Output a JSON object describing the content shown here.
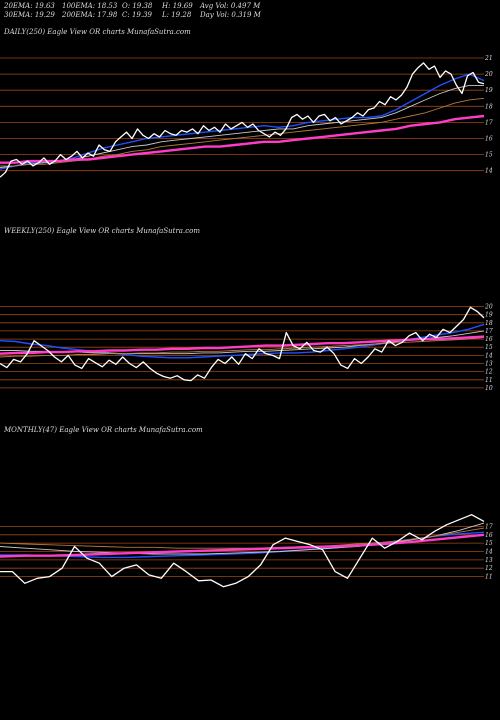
{
  "header": {
    "row1": [
      "20EMA: 19.63",
      "100EMA: 18.53",
      "O: 19.38",
      "H: 19.69",
      "Avg Vol: 0.497 M"
    ],
    "row2": [
      "30EMA: 19.29",
      "200EMA: 17.98",
      "C: 19.39",
      "L: 19.28",
      "Day Vol: 0.319 M"
    ]
  },
  "colors": {
    "background": "#000000",
    "price": "#ffffff",
    "ema_short": "#1e50ff",
    "ema_pink": "#ff3cc8",
    "ema_thin": "#c8c8c8",
    "ema_brown": "#b4783c",
    "level_line": "#a04614"
  },
  "chart_data": [
    {
      "type": "line",
      "title": "DAILY(250) Eagle  View  OR charts MunafaSutra.com",
      "yticks": [
        "21",
        "20",
        "19",
        "18",
        "17",
        "16",
        "15",
        "14"
      ],
      "levels": [
        21,
        20,
        19,
        18,
        17,
        16,
        15,
        14
      ],
      "ylim": [
        13.3,
        21.5
      ],
      "series": [
        {
          "role": "price",
          "color": "#ffffff",
          "values": [
            13.6,
            13.9,
            14.6,
            14.7,
            14.4,
            14.6,
            14.3,
            14.5,
            14.8,
            14.4,
            14.6,
            15.0,
            14.7,
            14.9,
            15.2,
            14.8,
            15.1,
            14.9,
            15.6,
            15.3,
            15.2,
            15.8,
            16.1,
            16.4,
            16.0,
            16.6,
            16.2,
            16.0,
            16.3,
            16.1,
            16.5,
            16.3,
            16.2,
            16.5,
            16.4,
            16.6,
            16.3,
            16.8,
            16.5,
            16.7,
            16.4,
            16.9,
            16.6,
            16.8,
            17.0,
            16.7,
            16.9,
            16.5,
            16.3,
            16.1,
            16.4,
            16.2,
            16.6,
            17.3,
            17.5,
            17.2,
            17.4,
            17.0,
            17.4,
            17.5,
            17.1,
            17.3,
            16.9,
            17.1,
            17.3,
            17.6,
            17.4,
            17.8,
            17.9,
            18.3,
            18.1,
            18.6,
            18.4,
            18.7,
            19.2,
            20.0,
            20.4,
            20.7,
            20.3,
            20.5,
            19.8,
            20.2,
            20.0,
            19.3,
            18.8,
            19.9,
            20.1,
            19.5,
            19.4
          ]
        },
        {
          "role": "ema_short",
          "color": "#1e50ff",
          "values": [
            14.1,
            14.3,
            14.5,
            14.5,
            14.6,
            14.8,
            15.1,
            15.4,
            15.6,
            15.8,
            16.0,
            16.1,
            16.2,
            16.3,
            16.4,
            16.5,
            16.6,
            16.7,
            16.8,
            16.7,
            16.8,
            17.0,
            17.1,
            17.2,
            17.3,
            17.3,
            17.4,
            17.8,
            18.3,
            18.8,
            19.3,
            19.7,
            20.0,
            19.6
          ]
        },
        {
          "role": "ema_mid",
          "color": "#c8c8c8",
          "values": [
            14.2,
            14.3,
            14.4,
            14.5,
            14.6,
            14.7,
            14.9,
            15.1,
            15.3,
            15.5,
            15.6,
            15.8,
            15.9,
            16.0,
            16.1,
            16.2,
            16.3,
            16.4,
            16.5,
            16.6,
            16.6,
            16.8,
            16.9,
            17.0,
            17.1,
            17.2,
            17.3,
            17.6,
            18.0,
            18.4,
            18.8,
            19.1,
            19.3,
            19.3
          ]
        },
        {
          "role": "ema_long",
          "color": "#b4783c",
          "values": [
            14.3,
            14.3,
            14.4,
            14.4,
            14.5,
            14.6,
            14.7,
            14.9,
            15.0,
            15.2,
            15.3,
            15.5,
            15.6,
            15.7,
            15.8,
            15.9,
            16.0,
            16.1,
            16.2,
            16.3,
            16.4,
            16.5,
            16.6,
            16.7,
            16.8,
            16.9,
            17.0,
            17.2,
            17.4,
            17.6,
            17.9,
            18.2,
            18.4,
            18.5
          ]
        },
        {
          "role": "ema_200",
          "color": "#ff3cc8",
          "values": [
            14.5,
            14.5,
            14.6,
            14.6,
            14.6,
            14.7,
            14.7,
            14.8,
            14.9,
            15.0,
            15.1,
            15.2,
            15.3,
            15.4,
            15.5,
            15.5,
            15.6,
            15.7,
            15.8,
            15.8,
            15.9,
            16.0,
            16.1,
            16.2,
            16.3,
            16.4,
            16.5,
            16.6,
            16.8,
            16.9,
            17.0,
            17.2,
            17.3,
            17.4
          ]
        }
      ]
    },
    {
      "type": "line",
      "title": "WEEKLY(250) Eagle  View  OR charts MunafaSutra.com",
      "yticks": [
        "20",
        "19",
        "18",
        "17",
        "16",
        "15",
        "14",
        "13",
        "12",
        "11",
        "10"
      ],
      "levels": [
        20,
        19,
        18,
        17,
        16,
        15,
        14,
        13,
        12,
        11,
        10
      ],
      "ylim": [
        9.5,
        20.8
      ],
      "series": [
        {
          "role": "price",
          "color": "#ffffff",
          "values": [
            13.0,
            12.5,
            13.5,
            13.2,
            14.2,
            15.8,
            15.2,
            14.6,
            13.8,
            13.2,
            14.0,
            12.8,
            12.4,
            13.6,
            13.1,
            12.6,
            13.4,
            12.9,
            13.8,
            13.0,
            12.5,
            13.2,
            12.4,
            11.8,
            11.4,
            11.2,
            11.5,
            11.0,
            10.9,
            11.6,
            11.2,
            12.5,
            13.5,
            13.0,
            13.8,
            12.9,
            14.2,
            13.6,
            14.8,
            14.2,
            14.0,
            13.6,
            16.8,
            15.2,
            14.8,
            15.6,
            14.6,
            14.4,
            15.0,
            14.2,
            12.8,
            12.4,
            13.6,
            13.0,
            13.8,
            14.8,
            14.4,
            15.8,
            15.2,
            15.6,
            16.4,
            16.8,
            15.8,
            16.6,
            16.2,
            17.2,
            16.8,
            17.6,
            18.4,
            19.9,
            19.4,
            18.6
          ]
        },
        {
          "role": "ema_short",
          "color": "#1e50ff",
          "values": [
            15.8,
            15.7,
            15.4,
            15.2,
            14.9,
            14.7,
            14.5,
            14.3,
            14.1,
            13.9,
            13.8,
            13.7,
            13.7,
            13.8,
            13.9,
            14.0,
            14.1,
            14.2,
            14.3,
            14.3,
            14.4,
            14.6,
            14.8,
            15.0,
            15.3,
            15.6,
            15.9,
            16.2,
            16.5,
            16.8,
            17.2,
            17.8
          ]
        },
        {
          "role": "ema_mid",
          "color": "#c8c8c8",
          "values": [
            14.6,
            14.6,
            14.5,
            14.5,
            14.4,
            14.4,
            14.3,
            14.3,
            14.2,
            14.2,
            14.2,
            14.2,
            14.2,
            14.3,
            14.3,
            14.4,
            14.5,
            14.5,
            14.6,
            14.7,
            14.8,
            14.9,
            15.0,
            15.2,
            15.4,
            15.6,
            15.8,
            16.0,
            16.2,
            16.4,
            16.7,
            17.0
          ]
        },
        {
          "role": "ema_long",
          "color": "#b4783c",
          "values": [
            13.8,
            13.9,
            13.9,
            14.0,
            14.0,
            14.1,
            14.1,
            14.2,
            14.2,
            14.3,
            14.3,
            14.4,
            14.4,
            14.5,
            14.5,
            14.6,
            14.7,
            14.7,
            14.8,
            14.9,
            15.0,
            15.1,
            15.2,
            15.3,
            15.4,
            15.5,
            15.6,
            15.7,
            15.8,
            15.9,
            16.0,
            16.2
          ]
        },
        {
          "role": "ema_200",
          "color": "#ff3cc8",
          "values": [
            14.2,
            14.3,
            14.3,
            14.4,
            14.4,
            14.5,
            14.5,
            14.6,
            14.6,
            14.7,
            14.7,
            14.8,
            14.8,
            14.9,
            14.9,
            15.0,
            15.1,
            15.2,
            15.2,
            15.3,
            15.4,
            15.5,
            15.5,
            15.6,
            15.7,
            15.8,
            15.9,
            16.0,
            16.0,
            16.1,
            16.2,
            16.3
          ]
        }
      ]
    },
    {
      "type": "line",
      "title": "MONTHLY(47) Eagle  View  OR charts MunafaSutra.com",
      "yticks": [
        "17",
        "16",
        "15",
        "14",
        "13",
        "12",
        "11"
      ],
      "levels": [
        17,
        16,
        15,
        14,
        13,
        12,
        11
      ],
      "ylim": [
        9.4,
        19.2
      ],
      "series": [
        {
          "role": "price",
          "color": "#ffffff",
          "values": [
            11.6,
            11.6,
            10.2,
            10.8,
            11.0,
            12.0,
            14.6,
            13.2,
            12.6,
            11.0,
            12.0,
            12.4,
            11.2,
            10.8,
            12.6,
            11.6,
            10.5,
            10.6,
            9.8,
            10.2,
            11.0,
            12.4,
            14.8,
            15.6,
            15.2,
            14.8,
            14.2,
            11.6,
            10.8,
            13.2,
            15.6,
            14.4,
            15.2,
            16.2,
            15.4,
            16.4,
            17.2,
            17.8,
            18.4,
            17.6
          ]
        },
        {
          "role": "ema_short",
          "color": "#1e50ff",
          "values": [
            13.6,
            13.6,
            13.5,
            13.4,
            13.3,
            13.3,
            13.4,
            13.5,
            13.6,
            13.7,
            13.8,
            14.0,
            14.2,
            14.4,
            14.7,
            15.0,
            15.4,
            15.8,
            16.1,
            16.3
          ]
        },
        {
          "role": "ema_mid",
          "color": "#c8c8c8",
          "values": [
            14.6,
            14.4,
            14.2,
            14.0,
            13.9,
            13.8,
            13.7,
            13.7,
            13.7,
            13.8,
            13.9,
            14.0,
            14.2,
            14.4,
            14.6,
            14.9,
            15.3,
            15.8,
            16.5,
            17.4
          ]
        },
        {
          "role": "ema_long",
          "color": "#b4783c",
          "values": [
            15.0,
            14.9,
            14.8,
            14.7,
            14.6,
            14.5,
            14.5,
            14.4,
            14.4,
            14.4,
            14.4,
            14.5,
            14.6,
            14.7,
            14.9,
            15.1,
            15.4,
            15.8,
            16.3,
            16.8
          ]
        },
        {
          "role": "ema_200",
          "color": "#ff3cc8",
          "values": [
            13.4,
            13.5,
            13.5,
            13.6,
            13.7,
            13.8,
            13.9,
            14.0,
            14.1,
            14.2,
            14.3,
            14.4,
            14.5,
            14.6,
            14.7,
            14.9,
            15.1,
            15.4,
            15.7,
            16.0
          ]
        }
      ]
    }
  ]
}
